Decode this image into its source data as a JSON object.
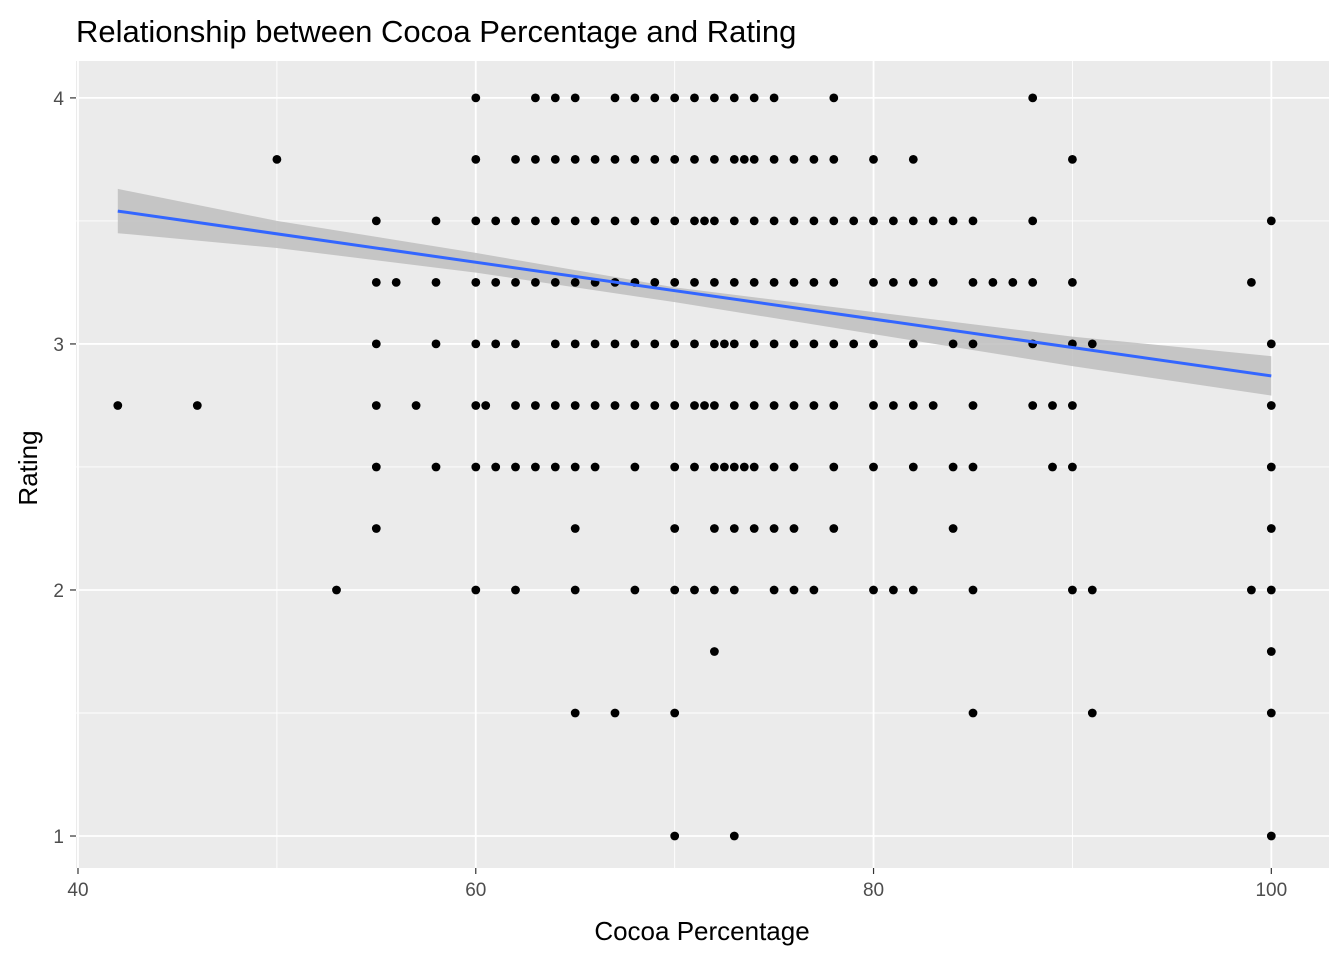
{
  "chart_data": {
    "type": "scatter",
    "title": "Relationship between Cocoa Percentage and Rating",
    "xlabel": "Cocoa Percentage",
    "ylabel": "Rating",
    "xlim": [
      39.9,
      102.9
    ],
    "ylim": [
      0.87,
      4.15
    ],
    "x_ticks": [
      40,
      60,
      80,
      100
    ],
    "x_tick_labels": [
      "40",
      "60",
      "80",
      "100"
    ],
    "y_ticks": [
      1,
      2,
      3,
      4
    ],
    "y_tick_labels": [
      "1",
      "2",
      "3",
      "4"
    ],
    "grid": true,
    "panel_background": "#ebebeb",
    "point_color": "#000000",
    "trend_color": "#3366ff",
    "band_color": "#bebebe",
    "points": [
      [
        60,
        4
      ],
      [
        63,
        4
      ],
      [
        64,
        4
      ],
      [
        65,
        4
      ],
      [
        67,
        4
      ],
      [
        68,
        4
      ],
      [
        69,
        4
      ],
      [
        70,
        4
      ],
      [
        71,
        4
      ],
      [
        72,
        4
      ],
      [
        73,
        4
      ],
      [
        74,
        4
      ],
      [
        75,
        4
      ],
      [
        78,
        4
      ],
      [
        88,
        4
      ],
      [
        50,
        3.75
      ],
      [
        60,
        3.75
      ],
      [
        62,
        3.75
      ],
      [
        63,
        3.75
      ],
      [
        64,
        3.75
      ],
      [
        65,
        3.75
      ],
      [
        66,
        3.75
      ],
      [
        67,
        3.75
      ],
      [
        68,
        3.75
      ],
      [
        69,
        3.75
      ],
      [
        70,
        3.75
      ],
      [
        71,
        3.75
      ],
      [
        72,
        3.75
      ],
      [
        73,
        3.75
      ],
      [
        73.5,
        3.75
      ],
      [
        74,
        3.75
      ],
      [
        75,
        3.75
      ],
      [
        76,
        3.75
      ],
      [
        77,
        3.75
      ],
      [
        78,
        3.75
      ],
      [
        80,
        3.75
      ],
      [
        82,
        3.75
      ],
      [
        90,
        3.75
      ],
      [
        55,
        3.5
      ],
      [
        58,
        3.5
      ],
      [
        60,
        3.5
      ],
      [
        61,
        3.5
      ],
      [
        62,
        3.5
      ],
      [
        63,
        3.5
      ],
      [
        64,
        3.5
      ],
      [
        65,
        3.5
      ],
      [
        66,
        3.5
      ],
      [
        67,
        3.5
      ],
      [
        68,
        3.5
      ],
      [
        69,
        3.5
      ],
      [
        70,
        3.5
      ],
      [
        71,
        3.5
      ],
      [
        71.5,
        3.5
      ],
      [
        72,
        3.5
      ],
      [
        73,
        3.5
      ],
      [
        74,
        3.5
      ],
      [
        75,
        3.5
      ],
      [
        76,
        3.5
      ],
      [
        77,
        3.5
      ],
      [
        78,
        3.5
      ],
      [
        79,
        3.5
      ],
      [
        80,
        3.5
      ],
      [
        81,
        3.5
      ],
      [
        82,
        3.5
      ],
      [
        83,
        3.5
      ],
      [
        84,
        3.5
      ],
      [
        85,
        3.5
      ],
      [
        88,
        3.5
      ],
      [
        100,
        3.5
      ],
      [
        55,
        3.25
      ],
      [
        56,
        3.25
      ],
      [
        58,
        3.25
      ],
      [
        60,
        3.25
      ],
      [
        61,
        3.25
      ],
      [
        62,
        3.25
      ],
      [
        63,
        3.25
      ],
      [
        64,
        3.25
      ],
      [
        65,
        3.25
      ],
      [
        66,
        3.25
      ],
      [
        67,
        3.25
      ],
      [
        68,
        3.25
      ],
      [
        69,
        3.25
      ],
      [
        70,
        3.25
      ],
      [
        71,
        3.25
      ],
      [
        72,
        3.25
      ],
      [
        73,
        3.25
      ],
      [
        74,
        3.25
      ],
      [
        75,
        3.25
      ],
      [
        76,
        3.25
      ],
      [
        77,
        3.25
      ],
      [
        78,
        3.25
      ],
      [
        80,
        3.25
      ],
      [
        81,
        3.25
      ],
      [
        82,
        3.25
      ],
      [
        83,
        3.25
      ],
      [
        85,
        3.25
      ],
      [
        86,
        3.25
      ],
      [
        87,
        3.25
      ],
      [
        88,
        3.25
      ],
      [
        90,
        3.25
      ],
      [
        99,
        3.25
      ],
      [
        55,
        3
      ],
      [
        58,
        3
      ],
      [
        60,
        3
      ],
      [
        61,
        3
      ],
      [
        62,
        3
      ],
      [
        64,
        3
      ],
      [
        65,
        3
      ],
      [
        66,
        3
      ],
      [
        67,
        3
      ],
      [
        68,
        3
      ],
      [
        69,
        3
      ],
      [
        70,
        3
      ],
      [
        71,
        3
      ],
      [
        72,
        3
      ],
      [
        72.5,
        3
      ],
      [
        73,
        3
      ],
      [
        74,
        3
      ],
      [
        75,
        3
      ],
      [
        76,
        3
      ],
      [
        77,
        3
      ],
      [
        78,
        3
      ],
      [
        79,
        3
      ],
      [
        80,
        3
      ],
      [
        82,
        3
      ],
      [
        84,
        3
      ],
      [
        85,
        3
      ],
      [
        88,
        3
      ],
      [
        90,
        3
      ],
      [
        91,
        3
      ],
      [
        100,
        3
      ],
      [
        42,
        2.75
      ],
      [
        46,
        2.75
      ],
      [
        55,
        2.75
      ],
      [
        57,
        2.75
      ],
      [
        60,
        2.75
      ],
      [
        60.5,
        2.75
      ],
      [
        62,
        2.75
      ],
      [
        63,
        2.75
      ],
      [
        64,
        2.75
      ],
      [
        65,
        2.75
      ],
      [
        66,
        2.75
      ],
      [
        67,
        2.75
      ],
      [
        68,
        2.75
      ],
      [
        69,
        2.75
      ],
      [
        70,
        2.75
      ],
      [
        71,
        2.75
      ],
      [
        71.5,
        2.75
      ],
      [
        72,
        2.75
      ],
      [
        73,
        2.75
      ],
      [
        74,
        2.75
      ],
      [
        75,
        2.75
      ],
      [
        76,
        2.75
      ],
      [
        77,
        2.75
      ],
      [
        78,
        2.75
      ],
      [
        80,
        2.75
      ],
      [
        81,
        2.75
      ],
      [
        82,
        2.75
      ],
      [
        83,
        2.75
      ],
      [
        85,
        2.75
      ],
      [
        88,
        2.75
      ],
      [
        89,
        2.75
      ],
      [
        90,
        2.75
      ],
      [
        100,
        2.75
      ],
      [
        55,
        2.5
      ],
      [
        58,
        2.5
      ],
      [
        60,
        2.5
      ],
      [
        61,
        2.5
      ],
      [
        62,
        2.5
      ],
      [
        63,
        2.5
      ],
      [
        64,
        2.5
      ],
      [
        65,
        2.5
      ],
      [
        66,
        2.5
      ],
      [
        68,
        2.5
      ],
      [
        70,
        2.5
      ],
      [
        71,
        2.5
      ],
      [
        72,
        2.5
      ],
      [
        72.5,
        2.5
      ],
      [
        73,
        2.5
      ],
      [
        73.5,
        2.5
      ],
      [
        74,
        2.5
      ],
      [
        75,
        2.5
      ],
      [
        76,
        2.5
      ],
      [
        78,
        2.5
      ],
      [
        80,
        2.5
      ],
      [
        82,
        2.5
      ],
      [
        84,
        2.5
      ],
      [
        85,
        2.5
      ],
      [
        89,
        2.5
      ],
      [
        90,
        2.5
      ],
      [
        100,
        2.5
      ],
      [
        55,
        2.25
      ],
      [
        65,
        2.25
      ],
      [
        70,
        2.25
      ],
      [
        72,
        2.25
      ],
      [
        73,
        2.25
      ],
      [
        74,
        2.25
      ],
      [
        75,
        2.25
      ],
      [
        76,
        2.25
      ],
      [
        78,
        2.25
      ],
      [
        84,
        2.25
      ],
      [
        100,
        2.25
      ],
      [
        53,
        2
      ],
      [
        60,
        2
      ],
      [
        62,
        2
      ],
      [
        65,
        2
      ],
      [
        68,
        2
      ],
      [
        70,
        2
      ],
      [
        71,
        2
      ],
      [
        72,
        2
      ],
      [
        73,
        2
      ],
      [
        75,
        2
      ],
      [
        76,
        2
      ],
      [
        77,
        2
      ],
      [
        80,
        2
      ],
      [
        81,
        2
      ],
      [
        82,
        2
      ],
      [
        85,
        2
      ],
      [
        90,
        2
      ],
      [
        91,
        2
      ],
      [
        99,
        2
      ],
      [
        100,
        2
      ],
      [
        72,
        1.75
      ],
      [
        100,
        1.75
      ],
      [
        65,
        1.5
      ],
      [
        67,
        1.5
      ],
      [
        70,
        1.5
      ],
      [
        85,
        1.5
      ],
      [
        91,
        1.5
      ],
      [
        100,
        1.5
      ],
      [
        70,
        1
      ],
      [
        73,
        1
      ],
      [
        100,
        1
      ]
    ],
    "trend_line": {
      "x": [
        42,
        100
      ],
      "y": [
        3.54,
        2.87
      ]
    },
    "confidence_band": {
      "x": [
        42,
        50,
        60,
        70,
        80,
        90,
        100
      ],
      "lower": [
        3.45,
        3.39,
        3.29,
        3.17,
        3.04,
        2.91,
        2.79
      ],
      "upper": [
        3.63,
        3.5,
        3.37,
        3.23,
        3.13,
        3.03,
        2.95
      ]
    }
  }
}
